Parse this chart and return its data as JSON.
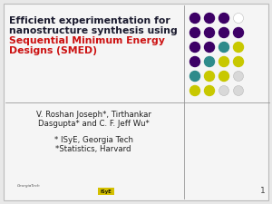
{
  "title_line1": "Efficient experimentation for",
  "title_line2": "nanostructure synthesis using",
  "title_line3_red": "Sequential Minimum Energy",
  "title_line4_red": "Designs (SMED)",
  "author_line1": "V. Roshan Joseph*, Tirthankar",
  "author_line2": "Dasgupta* and C. F. Jeff Wu*",
  "affil_line1": "* ISyE, Georgia Tech",
  "affil_line2": "*Statistics, Harvard",
  "page_number": "1",
  "bg_color": "#e8e8e8",
  "slide_color": "#f5f5f5",
  "title_color": "#1a1a2e",
  "red_color": "#cc1111",
  "author_color": "#222222",
  "divider_color": "#999999",
  "dot_grid": [
    [
      "#3d0066",
      "#3d0066",
      "#3d0066",
      "#ffffff"
    ],
    [
      "#3d0066",
      "#3d0066",
      "#3d0066",
      "#3d0066"
    ],
    [
      "#3d0066",
      "#3d0066",
      "#2e8b8b",
      "#c8c800"
    ],
    [
      "#3d0066",
      "#2e8b8b",
      "#c8c800",
      "#c8c800"
    ],
    [
      "#2e8b8b",
      "#c8c800",
      "#c8c800",
      "#d8d8d8"
    ],
    [
      "#c8c800",
      "#c8c800",
      "#d8d8d8",
      "#d8d8d8"
    ]
  ]
}
